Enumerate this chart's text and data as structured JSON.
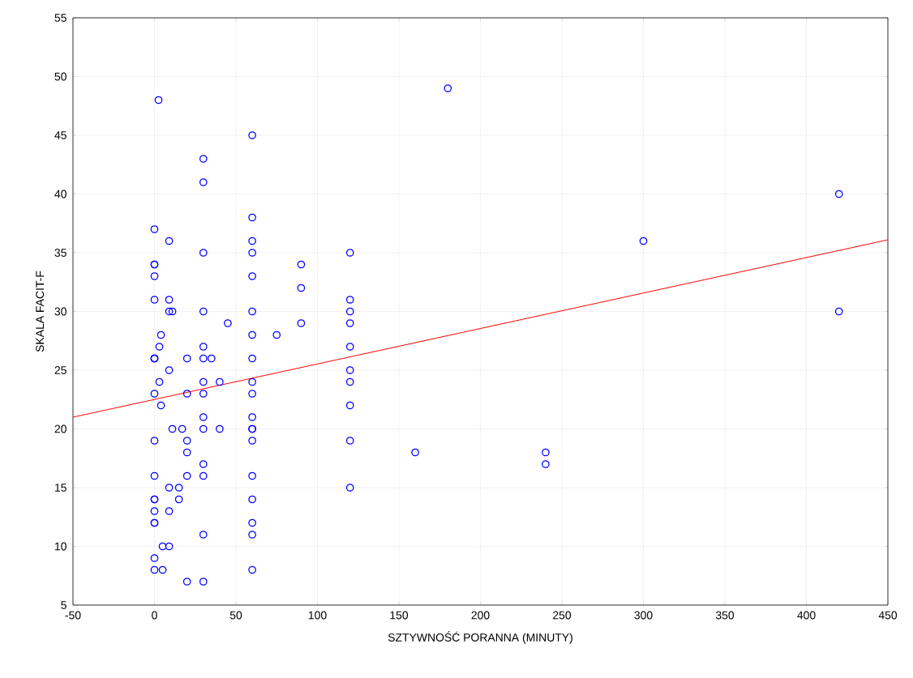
{
  "chart_data": {
    "type": "scatter",
    "xlabel": "SZTYWNOŚĆ PORANNA (MINUTY)",
    "ylabel": "SKALA FACIT-F",
    "xlim": [
      -50,
      450
    ],
    "ylim": [
      5,
      55
    ],
    "xticks": [
      -50,
      0,
      50,
      100,
      150,
      200,
      250,
      300,
      350,
      400,
      450
    ],
    "yticks": [
      5,
      10,
      15,
      20,
      25,
      30,
      35,
      40,
      45,
      50,
      55
    ],
    "grid": true,
    "marker": "circle",
    "series": [
      {
        "color": "#0000ff",
        "x": [
          0,
          0,
          0,
          0,
          0,
          0,
          0,
          0,
          0,
          0,
          0,
          0,
          0,
          0,
          0,
          0,
          0,
          0,
          2.5,
          3,
          3,
          4,
          4,
          5,
          5,
          9,
          9,
          9,
          9,
          9,
          9,
          9,
          11,
          11,
          15,
          15,
          17,
          20,
          20,
          20,
          20,
          20,
          20,
          30,
          30,
          30,
          30,
          30,
          30,
          30,
          30,
          30,
          30,
          30,
          30,
          30,
          30,
          35,
          40,
          40,
          45,
          60,
          60,
          60,
          60,
          60,
          60,
          60,
          60,
          60,
          60,
          60,
          60,
          60,
          60,
          60,
          60,
          60,
          60,
          60,
          75,
          90,
          90,
          90,
          120,
          120,
          120,
          120,
          120,
          120,
          120,
          120,
          120,
          120,
          160,
          180,
          240,
          240,
          300,
          420,
          420
        ],
        "values": [
          37,
          34,
          34,
          33,
          31,
          26,
          26,
          26,
          23,
          19,
          16,
          14,
          14,
          13,
          12,
          12,
          9,
          8,
          48,
          27,
          24,
          22,
          28,
          10,
          8,
          36,
          31,
          30,
          25,
          15,
          13,
          10,
          30,
          20,
          15,
          14,
          20,
          26,
          23,
          19,
          18,
          16,
          7,
          43,
          41,
          35,
          30,
          27,
          26,
          24,
          23,
          21,
          20,
          17,
          16,
          11,
          7,
          26,
          24,
          20,
          29,
          45,
          38,
          36,
          35,
          33,
          30,
          28,
          26,
          24,
          23,
          21,
          20,
          20,
          19,
          16,
          14,
          12,
          11,
          8,
          28,
          34,
          32,
          29,
          35,
          31,
          30,
          29,
          27,
          25,
          24,
          22,
          19,
          15,
          18,
          49,
          18,
          17,
          36,
          40,
          30
        ]
      },
      {
        "type": "line",
        "color": "#ff0000",
        "marker": "none",
        "x": [
          -50,
          450
        ],
        "values": [
          21.0,
          36.1
        ]
      }
    ]
  }
}
